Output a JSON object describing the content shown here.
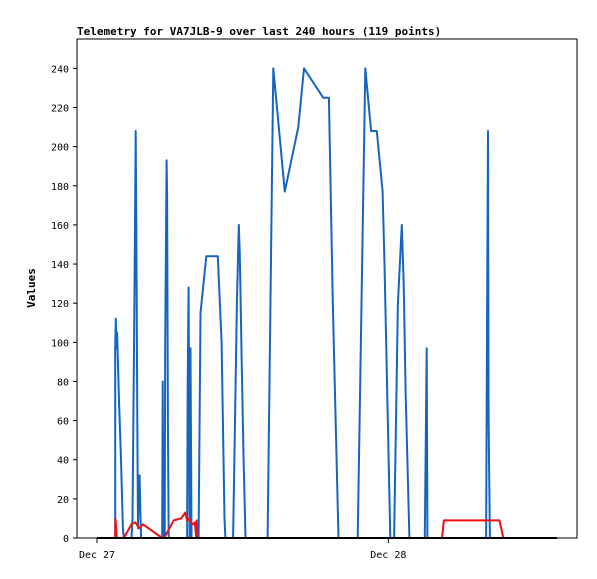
{
  "chart_data": {
    "type": "line",
    "title": "Telemetry for VA7JLB-9 over last 240 hours (119 points)",
    "xlabel": "",
    "ylabel": "Values",
    "x_unit": "hours",
    "xlim": [
      0,
      240
    ],
    "ylim": [
      0,
      255
    ],
    "y_ticks": [
      0,
      20,
      40,
      60,
      80,
      100,
      120,
      140,
      160,
      180,
      200,
      220,
      240
    ],
    "x_ticks": [
      {
        "label": "Dec 27",
        "x": 0
      },
      {
        "label": "Dec 28",
        "x": 152
      }
    ],
    "grid": false,
    "colors": {
      "blue": "#1565c0",
      "red": "#ee1111",
      "black": "#000000"
    },
    "series": [
      {
        "color": "#1565c0",
        "points": [
          [
            0,
            0
          ],
          [
            9.5,
            0
          ],
          [
            9.5,
            97
          ],
          [
            9.8,
            112
          ],
          [
            10.2,
            97
          ],
          [
            10.5,
            105
          ],
          [
            11.5,
            70
          ],
          [
            12.5,
            40
          ],
          [
            13.5,
            5
          ],
          [
            14,
            0
          ],
          [
            18,
            0
          ],
          [
            18.5,
            10
          ],
          [
            19.5,
            120
          ],
          [
            20,
            180
          ],
          [
            20.2,
            208
          ],
          [
            20.5,
            160
          ],
          [
            21,
            60
          ],
          [
            21.4,
            5
          ],
          [
            21.8,
            25
          ],
          [
            22.2,
            32
          ],
          [
            22.6,
            15
          ],
          [
            23,
            0
          ],
          [
            34,
            0
          ],
          [
            34.3,
            80
          ],
          [
            34.6,
            0
          ],
          [
            35,
            40
          ],
          [
            35.3,
            0
          ],
          [
            35.6,
            100
          ],
          [
            36.3,
            193
          ],
          [
            36.6,
            175
          ],
          [
            37,
            60
          ],
          [
            37.4,
            0
          ],
          [
            38,
            0
          ],
          [
            47,
            0
          ],
          [
            47.3,
            80
          ],
          [
            47.8,
            128
          ],
          [
            48.3,
            0
          ],
          [
            48.8,
            97
          ],
          [
            49.3,
            0
          ],
          [
            53,
            0
          ],
          [
            54,
            115
          ],
          [
            57,
            144
          ],
          [
            63,
            144
          ],
          [
            65,
            100
          ],
          [
            66.5,
            10
          ],
          [
            67,
            0
          ],
          [
            71,
            0
          ],
          [
            73,
            120
          ],
          [
            74,
            160
          ],
          [
            74.5,
            145
          ],
          [
            75.5,
            90
          ],
          [
            76.5,
            40
          ],
          [
            77.5,
            0
          ],
          [
            89,
            0
          ],
          [
            92,
            240
          ],
          [
            98,
            177
          ],
          [
            105,
            210
          ],
          [
            108,
            240
          ],
          [
            118,
            225
          ],
          [
            121,
            225
          ],
          [
            123,
            120
          ],
          [
            126,
            0
          ],
          [
            136,
            0
          ],
          [
            138,
            120
          ],
          [
            140,
            240
          ],
          [
            143,
            208
          ],
          [
            146,
            208
          ],
          [
            149,
            177
          ],
          [
            150,
            140
          ],
          [
            153,
            0
          ],
          [
            155,
            0
          ],
          [
            157,
            120
          ],
          [
            159,
            160
          ],
          [
            160,
            130
          ],
          [
            161,
            75
          ],
          [
            163,
            0
          ],
          [
            171,
            0
          ],
          [
            172,
            97
          ],
          [
            172.4,
            0
          ],
          [
            203,
            0
          ],
          [
            203.5,
            105
          ],
          [
            204,
            208
          ],
          [
            204.3,
            60
          ],
          [
            205,
            0
          ],
          [
            240,
            0
          ]
        ]
      },
      {
        "color": "#ee1111",
        "points": [
          [
            0,
            0
          ],
          [
            9.5,
            0
          ],
          [
            9.6,
            10
          ],
          [
            10,
            5
          ],
          [
            10.3,
            0
          ],
          [
            14,
            0
          ],
          [
            18,
            7
          ],
          [
            20,
            8
          ],
          [
            22,
            5
          ],
          [
            24,
            7
          ],
          [
            34,
            0
          ],
          [
            35,
            0
          ],
          [
            40,
            9
          ],
          [
            44,
            10
          ],
          [
            46,
            13
          ],
          [
            47,
            9
          ],
          [
            48,
            10
          ],
          [
            49,
            8
          ],
          [
            50,
            7
          ],
          [
            51,
            8
          ],
          [
            51.8,
            0
          ],
          [
            52,
            9
          ],
          [
            52.5,
            0
          ],
          [
            53,
            0
          ],
          [
            180,
            0
          ],
          [
            181,
            9
          ],
          [
            210,
            9
          ],
          [
            212,
            0
          ],
          [
            240,
            0
          ]
        ]
      },
      {
        "color": "#000000",
        "points": [
          [
            0,
            0
          ],
          [
            240,
            0
          ]
        ]
      }
    ]
  }
}
